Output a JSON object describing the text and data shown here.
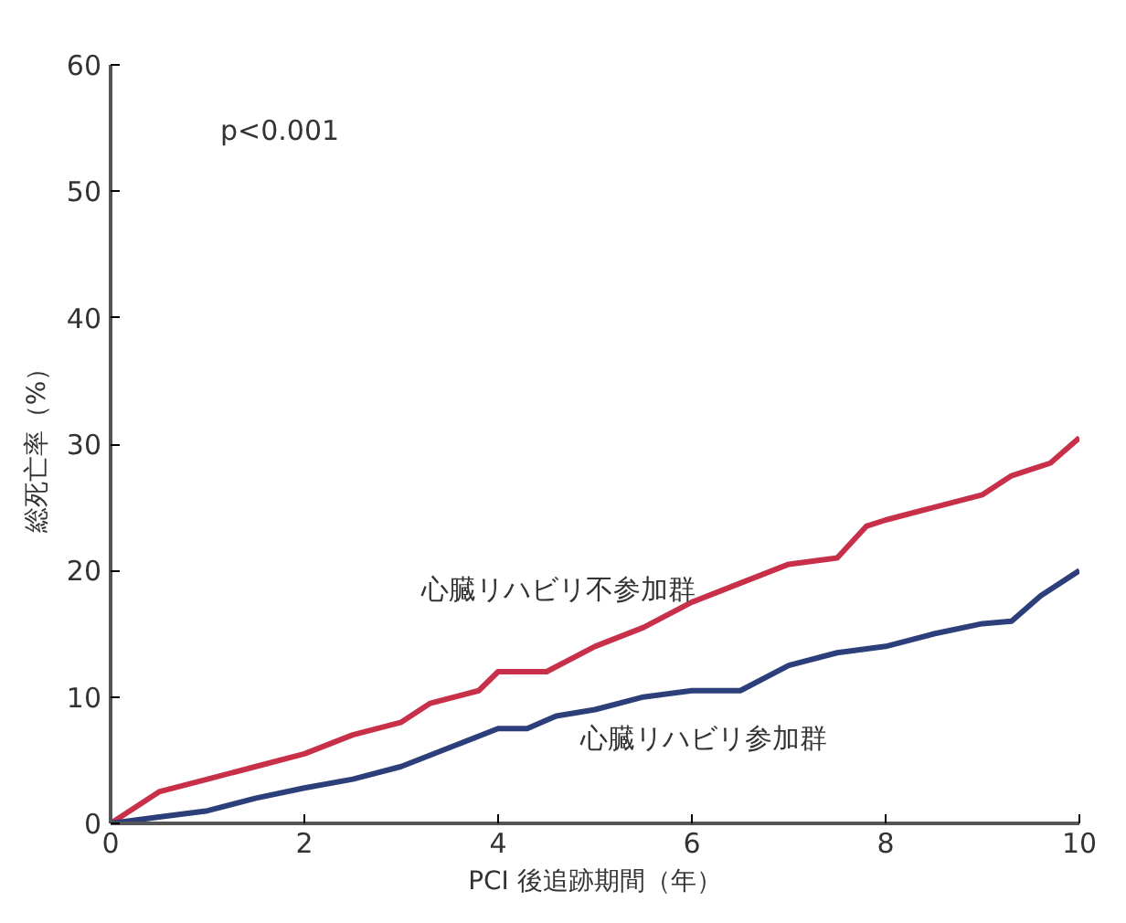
{
  "chart_data": {
    "type": "line",
    "xlabel": "PCI 後追跡期間（年）",
    "ylabel": "総死亡率（%）",
    "xlim": [
      0,
      10
    ],
    "ylim": [
      0,
      60
    ],
    "xticks": [
      0,
      2,
      4,
      6,
      8,
      10
    ],
    "yticks": [
      0,
      10,
      20,
      30,
      40,
      50,
      60
    ],
    "grid": false,
    "legend": false,
    "marker": "none",
    "line_style": "solid",
    "annotations": [
      "p<0.001"
    ],
    "series": [
      {
        "name": "心臓リハビリ不参加群",
        "color": "#c8304a",
        "x": [
          0,
          0.5,
          1,
          1.5,
          2,
          2.5,
          3,
          3.3,
          3.8,
          4,
          4.5,
          5,
          5.5,
          6,
          6.5,
          7,
          7.5,
          7.8,
          8,
          8.5,
          9,
          9.3,
          9.7,
          10
        ],
        "values": [
          0,
          2.5,
          3.5,
          4.5,
          5.5,
          7,
          8,
          9.5,
          10.5,
          12,
          12,
          14,
          15.5,
          17.5,
          19,
          20.5,
          21,
          23.5,
          24,
          25,
          26,
          27.5,
          28.5,
          30.5
        ]
      },
      {
        "name": "心臓リハビリ参加群",
        "color": "#2c3f7a",
        "x": [
          0,
          0.5,
          1,
          1.5,
          2,
          2.5,
          3,
          3.5,
          4,
          4.3,
          4.6,
          5,
          5.5,
          6,
          6.5,
          7,
          7.5,
          8,
          8.5,
          9,
          9.3,
          9.6,
          10
        ],
        "values": [
          0,
          0.5,
          1,
          2,
          2.8,
          3.5,
          4.5,
          6,
          7.5,
          7.5,
          8.5,
          9,
          10,
          10.5,
          10.5,
          12.5,
          13.5,
          14,
          15,
          15.8,
          16,
          18,
          20
        ]
      }
    ]
  }
}
